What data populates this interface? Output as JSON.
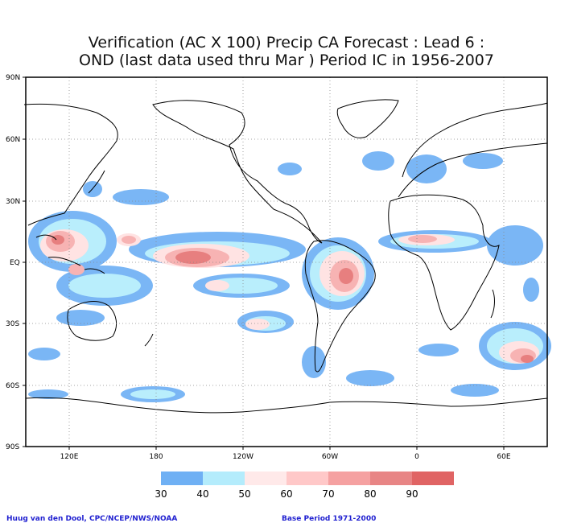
{
  "title": {
    "line1": "Verification (AC X 100) Precip CA Forecast : Lead 6 :",
    "line2": "OND (last data used thru Mar ) Period IC in 1956-2007"
  },
  "map": {
    "lat_labels": [
      "90N",
      "60N",
      "30N",
      "EQ",
      "30S",
      "60S",
      "90S"
    ],
    "lon_labels": [
      "120E",
      "180",
      "120W",
      "60W",
      "0",
      "60E"
    ],
    "grid": "dotted"
  },
  "colorbar": {
    "labels": [
      "30",
      "40",
      "50",
      "60",
      "70",
      "80",
      "90"
    ],
    "colors": [
      "#6fb0f4",
      "#b4ecfc",
      "#ffe9e9",
      "#ffc8c8",
      "#f5a1a1",
      "#e88585",
      "#e06464"
    ]
  },
  "footer": {
    "credit": "Huug van den Dool, CPC/NCEP/NWS/NOAA",
    "base_period": "Base Period 1971-2000"
  }
}
